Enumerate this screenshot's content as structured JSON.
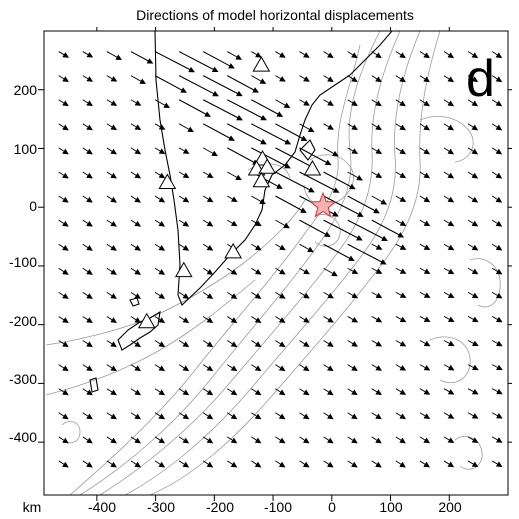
{
  "title": "Directions of model horizontal displacements",
  "panel_label": "d",
  "units_label": "km",
  "axes": {
    "x_ticks": [
      "-400",
      "-300",
      "-200",
      "-100",
      "0",
      "100",
      "200"
    ],
    "y_ticks": [
      "200",
      "100",
      "0",
      "-100",
      "-200",
      "-300",
      "-400"
    ]
  },
  "chart_data": {
    "type": "scatter",
    "title": "Directions of model horizontal displacements",
    "xlabel": "km",
    "ylabel": "",
    "xlim": [
      -490,
      300
    ],
    "ylim": [
      -490,
      300
    ],
    "epicenter": {
      "x": -15,
      "y": 2
    },
    "stations": [
      {
        "x": -120,
        "y": 242
      },
      {
        "x": -280,
        "y": 42
      },
      {
        "x": -252,
        "y": -108
      },
      {
        "x": -168,
        "y": -76
      },
      {
        "x": -315,
        "y": -195
      },
      {
        "x": -118,
        "y": 82
      },
      {
        "x": -128,
        "y": 65
      },
      {
        "x": -110,
        "y": 68
      },
      {
        "x": -120,
        "y": 45
      },
      {
        "x": -33,
        "y": 65
      }
    ],
    "vector_direction_note": "arrows point toward south-east"
  },
  "colors": {
    "coast": "#000000",
    "bathymetry": "#9a9a9a",
    "epicenter_fill": "#f7b3b3",
    "epicenter_stroke": "#d83030"
  }
}
